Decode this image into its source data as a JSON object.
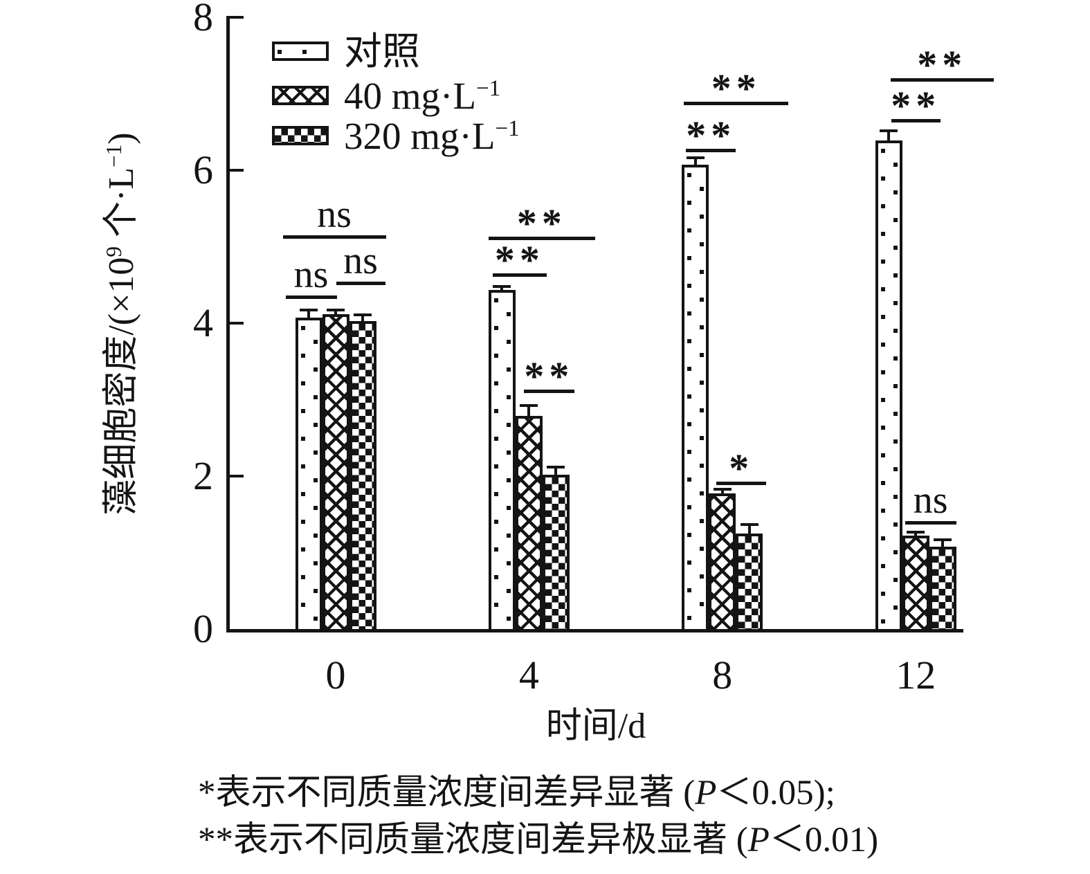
{
  "chart_data": {
    "type": "bar",
    "title": "",
    "categories": [
      "0",
      "4",
      "8",
      "12"
    ],
    "xlabel": "时间/d",
    "ylabel": "藻细胞密度/(×10⁹ 个·L⁻¹)",
    "ylabel_parts": {
      "pre": "藻细胞密度/(×10",
      "sup1": "9",
      "mid": " 个·L",
      "sup2": "−1",
      "end": ")"
    },
    "ylim": [
      0,
      8
    ],
    "yticks": [
      0,
      2,
      4,
      6,
      8
    ],
    "grid": false,
    "legend_position": "top-left-inside",
    "series": [
      {
        "name": "对照",
        "pattern": "dots",
        "values": [
          4.07,
          4.43,
          6.07,
          6.39
        ],
        "errors": [
          0.1,
          0.05,
          0.09,
          0.13
        ]
      },
      {
        "name": "40 mg·L⁻¹",
        "name_base": "40 mg·L",
        "name_sup": "−1",
        "pattern": "hatch",
        "values": [
          4.12,
          2.79,
          1.77,
          1.22
        ],
        "errors": [
          0.05,
          0.13,
          0.06,
          0.05
        ]
      },
      {
        "name": "320 mg·L⁻¹",
        "name_base": "320 mg·L",
        "name_sup": "−1",
        "pattern": "checker",
        "values": [
          4.03,
          2.02,
          1.25,
          1.08
        ],
        "errors": [
          0.08,
          0.1,
          0.12,
          0.09
        ]
      }
    ],
    "significance": [
      {
        "category": "0",
        "bars": [
          0,
          2
        ],
        "label": "ns",
        "y": 5.15,
        "dx": [
          -18,
          14
        ]
      },
      {
        "category": "0",
        "bars": [
          0,
          1
        ],
        "label": "ns",
        "y": 4.36,
        "dx": [
          -14,
          -18
        ]
      },
      {
        "category": "0",
        "bars": [
          1,
          2
        ],
        "label": "ns",
        "y": 4.54,
        "dx": [
          20,
          13
        ]
      },
      {
        "category": "4",
        "bars": [
          0,
          2
        ],
        "label": "**",
        "y": 5.13,
        "dx": [
          0,
          37
        ]
      },
      {
        "category": "4",
        "bars": [
          0,
          1
        ],
        "label": "**",
        "y": 4.65,
        "dx": [
          6,
          6
        ]
      },
      {
        "category": "4",
        "bars": [
          1,
          2
        ],
        "label": "**",
        "y": 3.13,
        "dx": [
          12,
          7
        ]
      },
      {
        "category": "8",
        "bars": [
          0,
          2
        ],
        "label": "**",
        "y": 6.9,
        "dx": [
          3,
          37
        ]
      },
      {
        "category": "8",
        "bars": [
          0,
          1
        ],
        "label": "**",
        "y": 6.28,
        "dx": [
          6,
          0
        ]
      },
      {
        "category": "8",
        "bars": [
          1,
          2
        ],
        "label": "*",
        "y": 1.93,
        "dx": [
          11,
          5
        ]
      },
      {
        "category": "12",
        "bars": [
          0,
          2
        ],
        "label": "**",
        "y": 7.2,
        "dx": [
          22,
          54
        ]
      },
      {
        "category": "12",
        "bars": [
          0,
          1
        ],
        "label": "**",
        "y": 6.67,
        "dx": [
          23,
          16
        ]
      },
      {
        "category": "12",
        "bars": [
          1,
          2
        ],
        "label": "ns",
        "y": 1.41,
        "dx": [
          4,
          0
        ]
      }
    ]
  },
  "footnotes": {
    "line1": {
      "pre": "*表示不同质量浓度间差异显著 (",
      "italic": "P",
      "post": "＜0.05);"
    },
    "line2": {
      "pre": "**表示不同质量浓度间差异极显著 (",
      "italic": "P",
      "post": "＜0.01)"
    }
  },
  "colors": {
    "ink": "#141414",
    "background": "#ffffff"
  }
}
